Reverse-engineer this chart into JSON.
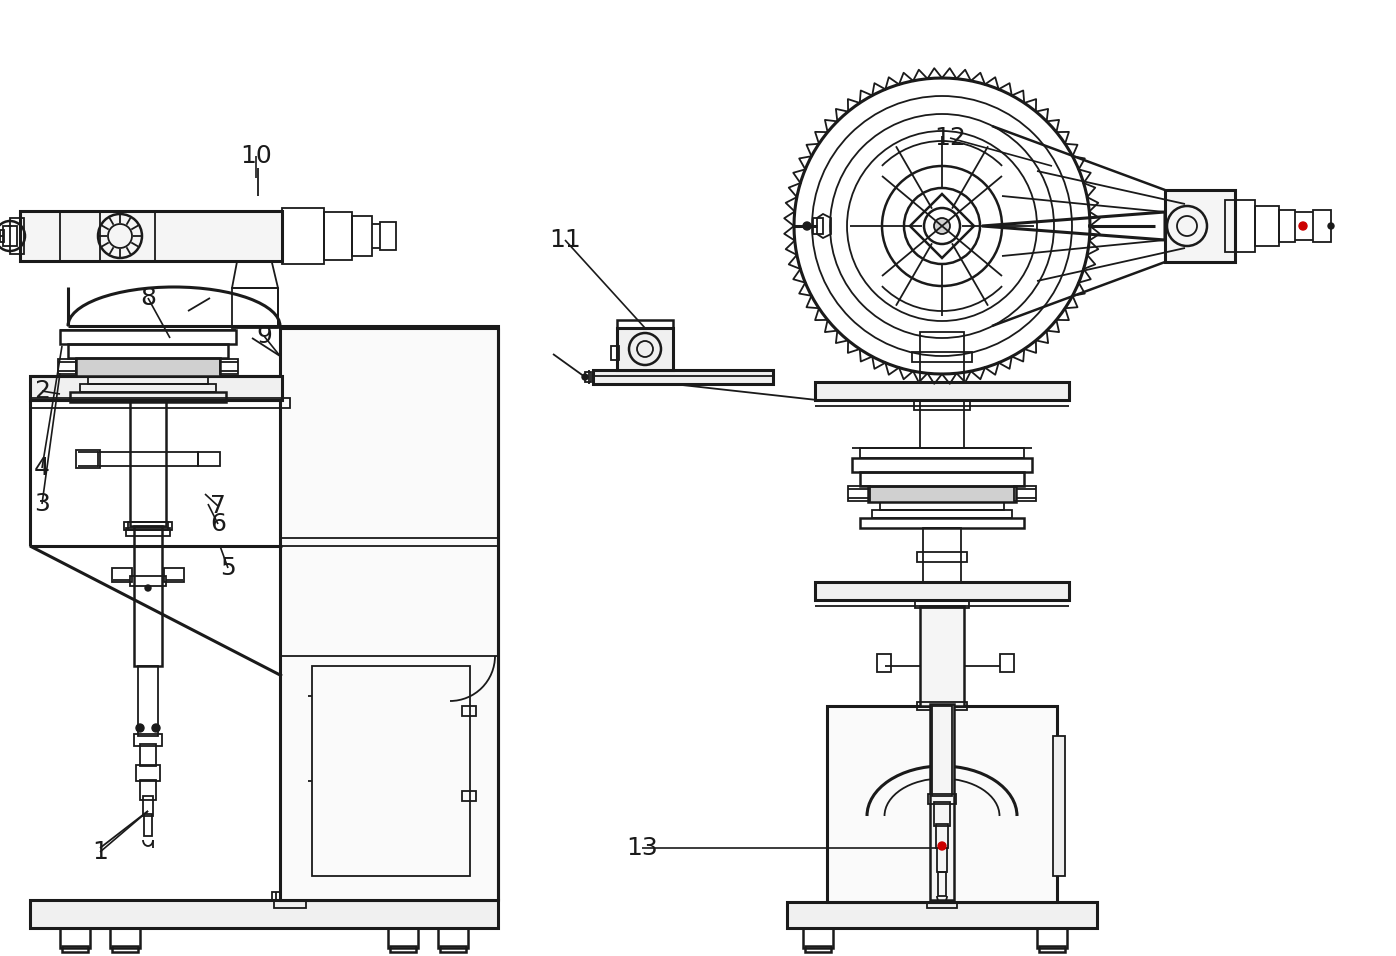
{
  "bg": "#ffffff",
  "lc": "#1a1a1a",
  "red": "#cc0000",
  "lw": 1.8,
  "lwt": 1.3,
  "lw2": 2.2,
  "fs": 18
}
